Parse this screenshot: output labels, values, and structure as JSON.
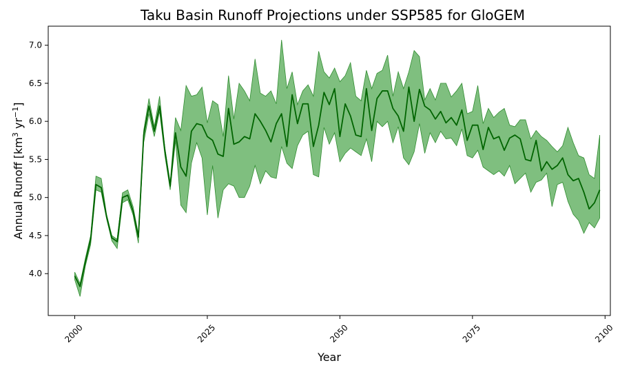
{
  "chart_data": {
    "type": "area",
    "title": "Taku Basin Runoff Projections under SSP585 for GloGEM",
    "xlabel": "Year",
    "ylabel_main": "Annual Runoff [km",
    "ylabel_sup1": "3",
    "ylabel_mid": " yr",
    "ylabel_sup2": "−1",
    "ylabel_end": "]",
    "xlim": [
      1995,
      2101
    ],
    "ylim": [
      3.45,
      7.25
    ],
    "xticks": [
      2000,
      2025,
      2050,
      2075,
      2100
    ],
    "yticks": [
      4.0,
      4.5,
      5.0,
      5.5,
      6.0,
      6.5,
      7.0
    ],
    "grid": false,
    "colors": {
      "band": "#7fbf7f",
      "band_edge": "#2e8b2e",
      "line": "#006400"
    },
    "x": [
      2000,
      2001,
      2002,
      2003,
      2004,
      2005,
      2006,
      2007,
      2008,
      2009,
      2010,
      2011,
      2012,
      2013,
      2014,
      2015,
      2016,
      2017,
      2018,
      2019,
      2020,
      2021,
      2022,
      2023,
      2024,
      2025,
      2026,
      2027,
      2028,
      2029,
      2030,
      2031,
      2032,
      2033,
      2034,
      2035,
      2036,
      2037,
      2038,
      2039,
      2040,
      2041,
      2042,
      2043,
      2044,
      2045,
      2046,
      2047,
      2048,
      2049,
      2050,
      2051,
      2052,
      2053,
      2054,
      2055,
      2056,
      2057,
      2058,
      2059,
      2060,
      2061,
      2062,
      2063,
      2064,
      2065,
      2066,
      2067,
      2068,
      2069,
      2070,
      2071,
      2072,
      2073,
      2074,
      2075,
      2076,
      2077,
      2078,
      2079,
      2080,
      2081,
      2082,
      2083,
      2084,
      2085,
      2086,
      2087,
      2088,
      2089,
      2090,
      2091,
      2092,
      2093,
      2094,
      2095,
      2096,
      2097,
      2098,
      2099
    ],
    "series": [
      {
        "role": "mean",
        "values": [
          3.97,
          3.83,
          4.15,
          4.45,
          5.17,
          5.13,
          4.75,
          4.47,
          4.42,
          5.0,
          5.03,
          4.82,
          4.48,
          5.82,
          6.2,
          5.87,
          6.2,
          5.62,
          5.15,
          5.85,
          5.4,
          5.28,
          5.87,
          5.97,
          5.95,
          5.8,
          5.75,
          5.57,
          5.54,
          6.17,
          5.7,
          5.73,
          5.8,
          5.77,
          6.1,
          6.0,
          5.88,
          5.73,
          5.97,
          6.1,
          5.67,
          6.35,
          5.97,
          6.23,
          6.23,
          5.67,
          5.95,
          6.38,
          6.22,
          6.43,
          5.8,
          6.23,
          6.07,
          5.82,
          5.8,
          6.43,
          5.88,
          6.3,
          6.4,
          6.4,
          6.17,
          6.07,
          5.87,
          6.45,
          6.0,
          6.42,
          6.2,
          6.15,
          6.03,
          6.13,
          5.98,
          6.05,
          5.95,
          6.15,
          5.75,
          5.95,
          5.95,
          5.63,
          5.92,
          5.77,
          5.8,
          5.62,
          5.78,
          5.82,
          5.77,
          5.5,
          5.48,
          5.75,
          5.35,
          5.47,
          5.37,
          5.42,
          5.52,
          5.3,
          5.22,
          5.25,
          5.07,
          4.85,
          4.93,
          5.1
        ]
      },
      {
        "role": "upper",
        "values": [
          4.02,
          3.87,
          4.2,
          4.5,
          5.28,
          5.25,
          4.78,
          4.5,
          4.45,
          5.06,
          5.1,
          4.88,
          4.52,
          5.88,
          6.3,
          5.93,
          6.33,
          5.65,
          5.2,
          6.05,
          5.88,
          6.47,
          6.33,
          6.35,
          6.45,
          5.98,
          6.27,
          6.22,
          5.8,
          6.6,
          6.03,
          6.5,
          6.4,
          6.27,
          6.82,
          6.37,
          6.33,
          6.4,
          6.23,
          7.07,
          6.43,
          6.65,
          6.22,
          6.4,
          6.48,
          6.33,
          6.92,
          6.65,
          6.57,
          6.7,
          6.52,
          6.6,
          6.77,
          6.33,
          6.27,
          6.67,
          6.43,
          6.63,
          6.67,
          6.87,
          6.33,
          6.65,
          6.43,
          6.65,
          6.93,
          6.85,
          6.28,
          6.43,
          6.28,
          6.5,
          6.5,
          6.32,
          6.4,
          6.5,
          6.1,
          6.13,
          6.47,
          5.97,
          6.17,
          6.05,
          6.12,
          6.17,
          5.95,
          5.93,
          6.02,
          6.02,
          5.77,
          5.88,
          5.8,
          5.75,
          5.67,
          5.6,
          5.68,
          5.92,
          5.72,
          5.55,
          5.52,
          5.3,
          5.25,
          5.82
        ]
      },
      {
        "role": "lower",
        "values": [
          3.92,
          3.7,
          4.1,
          4.38,
          5.1,
          5.07,
          4.72,
          4.43,
          4.33,
          4.93,
          4.97,
          4.77,
          4.4,
          5.72,
          6.1,
          5.8,
          6.13,
          5.55,
          5.1,
          5.75,
          4.9,
          4.8,
          5.45,
          5.72,
          5.52,
          4.77,
          5.42,
          4.73,
          5.1,
          5.18,
          5.15,
          5.0,
          5.0,
          5.15,
          5.42,
          5.18,
          5.35,
          5.27,
          5.25,
          5.67,
          5.45,
          5.38,
          5.68,
          5.82,
          5.87,
          5.3,
          5.27,
          5.92,
          5.7,
          5.85,
          5.47,
          5.58,
          5.65,
          5.6,
          5.55,
          5.77,
          5.47,
          6.0,
          5.93,
          6.0,
          5.72,
          5.93,
          5.52,
          5.43,
          5.6,
          5.97,
          5.58,
          5.85,
          5.72,
          5.87,
          5.77,
          5.78,
          5.68,
          5.9,
          5.55,
          5.52,
          5.62,
          5.4,
          5.35,
          5.3,
          5.35,
          5.28,
          5.42,
          5.18,
          5.25,
          5.32,
          5.07,
          5.2,
          5.23,
          5.32,
          4.88,
          5.17,
          5.2,
          4.95,
          4.78,
          4.7,
          4.53,
          4.67,
          4.6,
          4.73
        ]
      }
    ]
  }
}
